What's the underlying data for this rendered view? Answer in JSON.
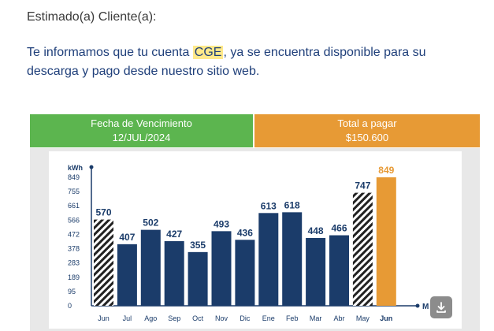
{
  "email": {
    "greeting": "Estimado(a) Cliente(a):",
    "intro_before": "Te informamos que tu cuenta ",
    "intro_highlight": "CGE",
    "intro_after": ", ya se encuentra disponible para su descarga y pago desde nuestro sitio web."
  },
  "banners": {
    "due_label": "Fecha de Vencimiento",
    "due_value": "12/JUL/2024",
    "total_label": "Total a pagar",
    "total_value": "$150.600"
  },
  "colors": {
    "green": "#5cb54f",
    "orange": "#e79a35",
    "navy": "#1b3c6a",
    "text_blue": "#1f3f7a"
  },
  "chart_data": {
    "type": "bar",
    "ylabel": "kWh",
    "xlabel": "M",
    "ylim": [
      0,
      849
    ],
    "y_ticks": [
      "849",
      "755",
      "661",
      "566",
      "472",
      "378",
      "283",
      "189",
      "95",
      "0"
    ],
    "categories": [
      "Jun",
      "Jul",
      "Ago",
      "Sep",
      "Oct",
      "Nov",
      "Dic",
      "Ene",
      "Feb",
      "Mar",
      "Abr",
      "May",
      "Jun"
    ],
    "values": [
      570,
      407,
      502,
      427,
      355,
      493,
      436,
      613,
      618,
      448,
      466,
      747,
      849
    ],
    "labels": [
      "570",
      "407",
      "502",
      "427",
      "355",
      "493",
      "436",
      "613",
      "618",
      "448",
      "466",
      "747",
      "849"
    ],
    "styles": [
      "hatched",
      "solid",
      "solid",
      "solid",
      "solid",
      "solid",
      "solid",
      "solid",
      "solid",
      "solid",
      "solid",
      "hatched",
      "current"
    ]
  },
  "download": {
    "icon": "download-icon"
  }
}
